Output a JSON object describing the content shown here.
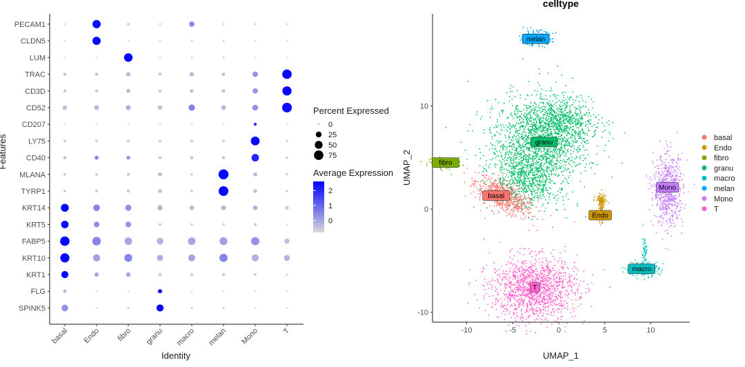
{
  "chart_data": [
    {
      "type": "scatter",
      "subtype": "dot-plot",
      "xlabel": "Identity",
      "ylabel": "Features",
      "categories": [
        "basal",
        "Endo",
        "fibro",
        "granu",
        "macro",
        "melan",
        "Mono",
        "T"
      ],
      "features": [
        "PECAM1",
        "CLDN5",
        "LUM",
        "TRAC",
        "CD3D",
        "CD52",
        "CD207",
        "LY75",
        "CD40",
        "MLANA",
        "TYRP1",
        "KRT14",
        "KRT5",
        "FABP5",
        "KRT10",
        "KRT1",
        "FLG",
        "SPINK5"
      ],
      "pct_legend_title": "Percent Expressed",
      "pct_legend_values": [
        0,
        25,
        50,
        75
      ],
      "avg_legend_title": "Average Expression",
      "avg_legend_ticks": [
        2,
        1,
        0
      ],
      "avg_range": [
        -0.8,
        2.6
      ],
      "colors": {
        "low": "#d9d9d9",
        "high": "#0000ff"
      },
      "pct": [
        [
          1,
          55,
          3,
          2,
          20,
          2,
          2,
          1
        ],
        [
          1,
          55,
          1,
          1,
          2,
          2,
          1,
          1
        ],
        [
          1,
          1,
          60,
          1,
          2,
          2,
          1,
          1
        ],
        [
          6,
          6,
          12,
          6,
          12,
          8,
          22,
          75
        ],
        [
          5,
          5,
          10,
          5,
          8,
          8,
          20,
          70
        ],
        [
          14,
          16,
          18,
          14,
          30,
          16,
          26,
          80
        ],
        [
          1,
          1,
          1,
          1,
          1,
          1,
          5,
          1
        ],
        [
          4,
          4,
          4,
          4,
          4,
          4,
          65,
          2
        ],
        [
          6,
          10,
          10,
          5,
          6,
          5,
          45,
          3
        ],
        [
          3,
          3,
          4,
          10,
          3,
          85,
          10,
          2
        ],
        [
          3,
          3,
          4,
          8,
          3,
          80,
          8,
          2
        ],
        [
          50,
          35,
          30,
          20,
          14,
          16,
          15,
          8
        ],
        [
          45,
          22,
          24,
          4,
          3,
          3,
          4,
          1
        ],
        [
          75,
          60,
          45,
          35,
          45,
          50,
          55,
          20
        ],
        [
          70,
          40,
          50,
          28,
          38,
          55,
          40,
          26
        ],
        [
          40,
          12,
          14,
          6,
          5,
          5,
          4,
          2
        ],
        [
          6,
          1,
          1,
          12,
          1,
          1,
          1,
          1
        ],
        [
          35,
          1,
          2,
          40,
          2,
          2,
          1,
          1
        ]
      ],
      "avg": [
        [
          -0.8,
          2.4,
          -0.5,
          -0.8,
          0.5,
          -0.8,
          -0.8,
          -0.8
        ],
        [
          -0.8,
          2.5,
          -0.8,
          -0.8,
          -0.8,
          -0.8,
          -0.8,
          -0.8
        ],
        [
          -0.8,
          -0.8,
          2.5,
          -0.8,
          -0.8,
          -0.8,
          -0.8,
          -0.8
        ],
        [
          -0.5,
          -0.5,
          -0.3,
          -0.5,
          -0.3,
          -0.5,
          0.3,
          2.5
        ],
        [
          -0.5,
          -0.5,
          -0.3,
          -0.5,
          -0.4,
          -0.5,
          0.3,
          2.5
        ],
        [
          -0.4,
          -0.3,
          -0.2,
          -0.4,
          0.6,
          -0.3,
          0.3,
          2.4
        ],
        [
          -0.8,
          -0.8,
          -0.8,
          -0.8,
          -0.8,
          -0.8,
          1.8,
          -0.8
        ],
        [
          -0.6,
          -0.6,
          -0.6,
          -0.6,
          -0.6,
          -0.6,
          2.5,
          -0.6
        ],
        [
          -0.5,
          0.5,
          0.2,
          -0.5,
          -0.5,
          -0.5,
          2.0,
          -0.6
        ],
        [
          -0.5,
          -0.5,
          -0.4,
          -0.3,
          -0.5,
          2.5,
          -0.3,
          -0.5
        ],
        [
          -0.5,
          -0.5,
          -0.4,
          -0.3,
          -0.5,
          2.5,
          -0.3,
          -0.5
        ],
        [
          2.5,
          0.5,
          0.3,
          -0.2,
          -0.3,
          -0.2,
          -0.2,
          -0.5
        ],
        [
          2.4,
          0.4,
          0.3,
          -0.6,
          -0.7,
          -0.7,
          -0.6,
          -0.8
        ],
        [
          2.5,
          0.5,
          0.0,
          -0.2,
          0.0,
          0.1,
          0.3,
          -0.4
        ],
        [
          2.5,
          0.1,
          0.5,
          -0.1,
          0.0,
          0.5,
          -0.2,
          -0.2
        ],
        [
          2.5,
          0.0,
          0.0,
          -0.5,
          -0.6,
          -0.6,
          -0.6,
          -0.7
        ],
        [
          -0.2,
          -0.8,
          -0.8,
          2.4,
          -0.8,
          -0.8,
          -0.8,
          -0.8
        ],
        [
          0.3,
          -0.8,
          -0.7,
          2.5,
          -0.7,
          -0.7,
          -0.8,
          -0.8
        ]
      ]
    },
    {
      "type": "scatter",
      "subtype": "umap",
      "title": "celltype",
      "xlabel": "UMAP_1",
      "ylabel": "UMAP_2",
      "xlim": [
        -14,
        14.5
      ],
      "ylim": [
        -11,
        19
      ],
      "xticks": [
        -10,
        -5,
        0,
        5,
        10
      ],
      "yticks": [
        -10,
        0,
        10
      ],
      "legend_position": "right",
      "clusters": [
        {
          "name": "basal",
          "color": "#F8766D",
          "label_x": -6.8,
          "label_y": 1.3
        },
        {
          "name": "Endo",
          "color": "#CD9600",
          "label_x": 4.5,
          "label_y": -0.6
        },
        {
          "name": "fibro",
          "color": "#7CAE00",
          "label_x": -12.3,
          "label_y": 4.5
        },
        {
          "name": "granu",
          "color": "#00BE67",
          "label_x": -1.6,
          "label_y": 6.5
        },
        {
          "name": "macro",
          "color": "#00BFC4",
          "label_x": 9.0,
          "label_y": -5.8
        },
        {
          "name": "melan",
          "color": "#00A9FF",
          "label_x": -2.5,
          "label_y": 16.5
        },
        {
          "name": "Mono",
          "color": "#C77CFF",
          "label_x": 11.8,
          "label_y": 2.1
        },
        {
          "name": "T",
          "color": "#FF61CC",
          "label_x": -2.6,
          "label_y": -7.6
        }
      ]
    }
  ]
}
